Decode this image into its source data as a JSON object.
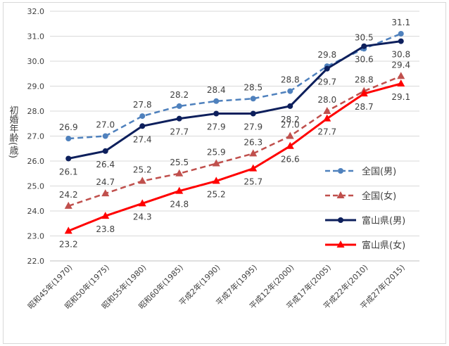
{
  "chart_data": {
    "type": "line",
    "ylabel": "初婚年齢(歳)",
    "ylim": [
      22.0,
      32.0
    ],
    "ytick_step": 1.0,
    "categories": [
      "昭和45年(1970)",
      "昭和50年(1975)",
      "昭和55年(1980)",
      "昭和60年(1985)",
      "平成2年(1990)",
      "平成7年(1995)",
      "平成12年(2000)",
      "平成17年(2005)",
      "平成22年(2010)",
      "平成27年(2015)"
    ],
    "series": [
      {
        "name": "全国(男)",
        "values": [
          26.9,
          27.0,
          27.8,
          28.2,
          28.4,
          28.5,
          28.8,
          29.8,
          30.5,
          31.1
        ],
        "color": "#4f81bd",
        "dash": "dashed",
        "marker": "circle",
        "label_position": "above"
      },
      {
        "name": "全国(女)",
        "values": [
          24.2,
          24.7,
          25.2,
          25.5,
          25.9,
          26.3,
          27.0,
          28.0,
          28.8,
          29.4
        ],
        "color": "#c0504d",
        "dash": "dashed",
        "marker": "triangle",
        "label_position": "above"
      },
      {
        "name": "富山県(男)",
        "values": [
          26.1,
          26.4,
          27.4,
          27.7,
          27.9,
          27.9,
          28.2,
          29.7,
          30.6,
          30.8
        ],
        "color": "#0d1f5c",
        "dash": "solid",
        "marker": "circle",
        "label_position": "below"
      },
      {
        "name": "富山県(女)",
        "values": [
          23.2,
          23.8,
          24.3,
          24.8,
          25.2,
          25.7,
          26.6,
          27.7,
          28.7,
          29.1
        ],
        "color": "#ff0000",
        "dash": "solid",
        "marker": "triangle",
        "label_position": "below"
      }
    ],
    "legend_position": "right",
    "grid": "horizontal"
  }
}
